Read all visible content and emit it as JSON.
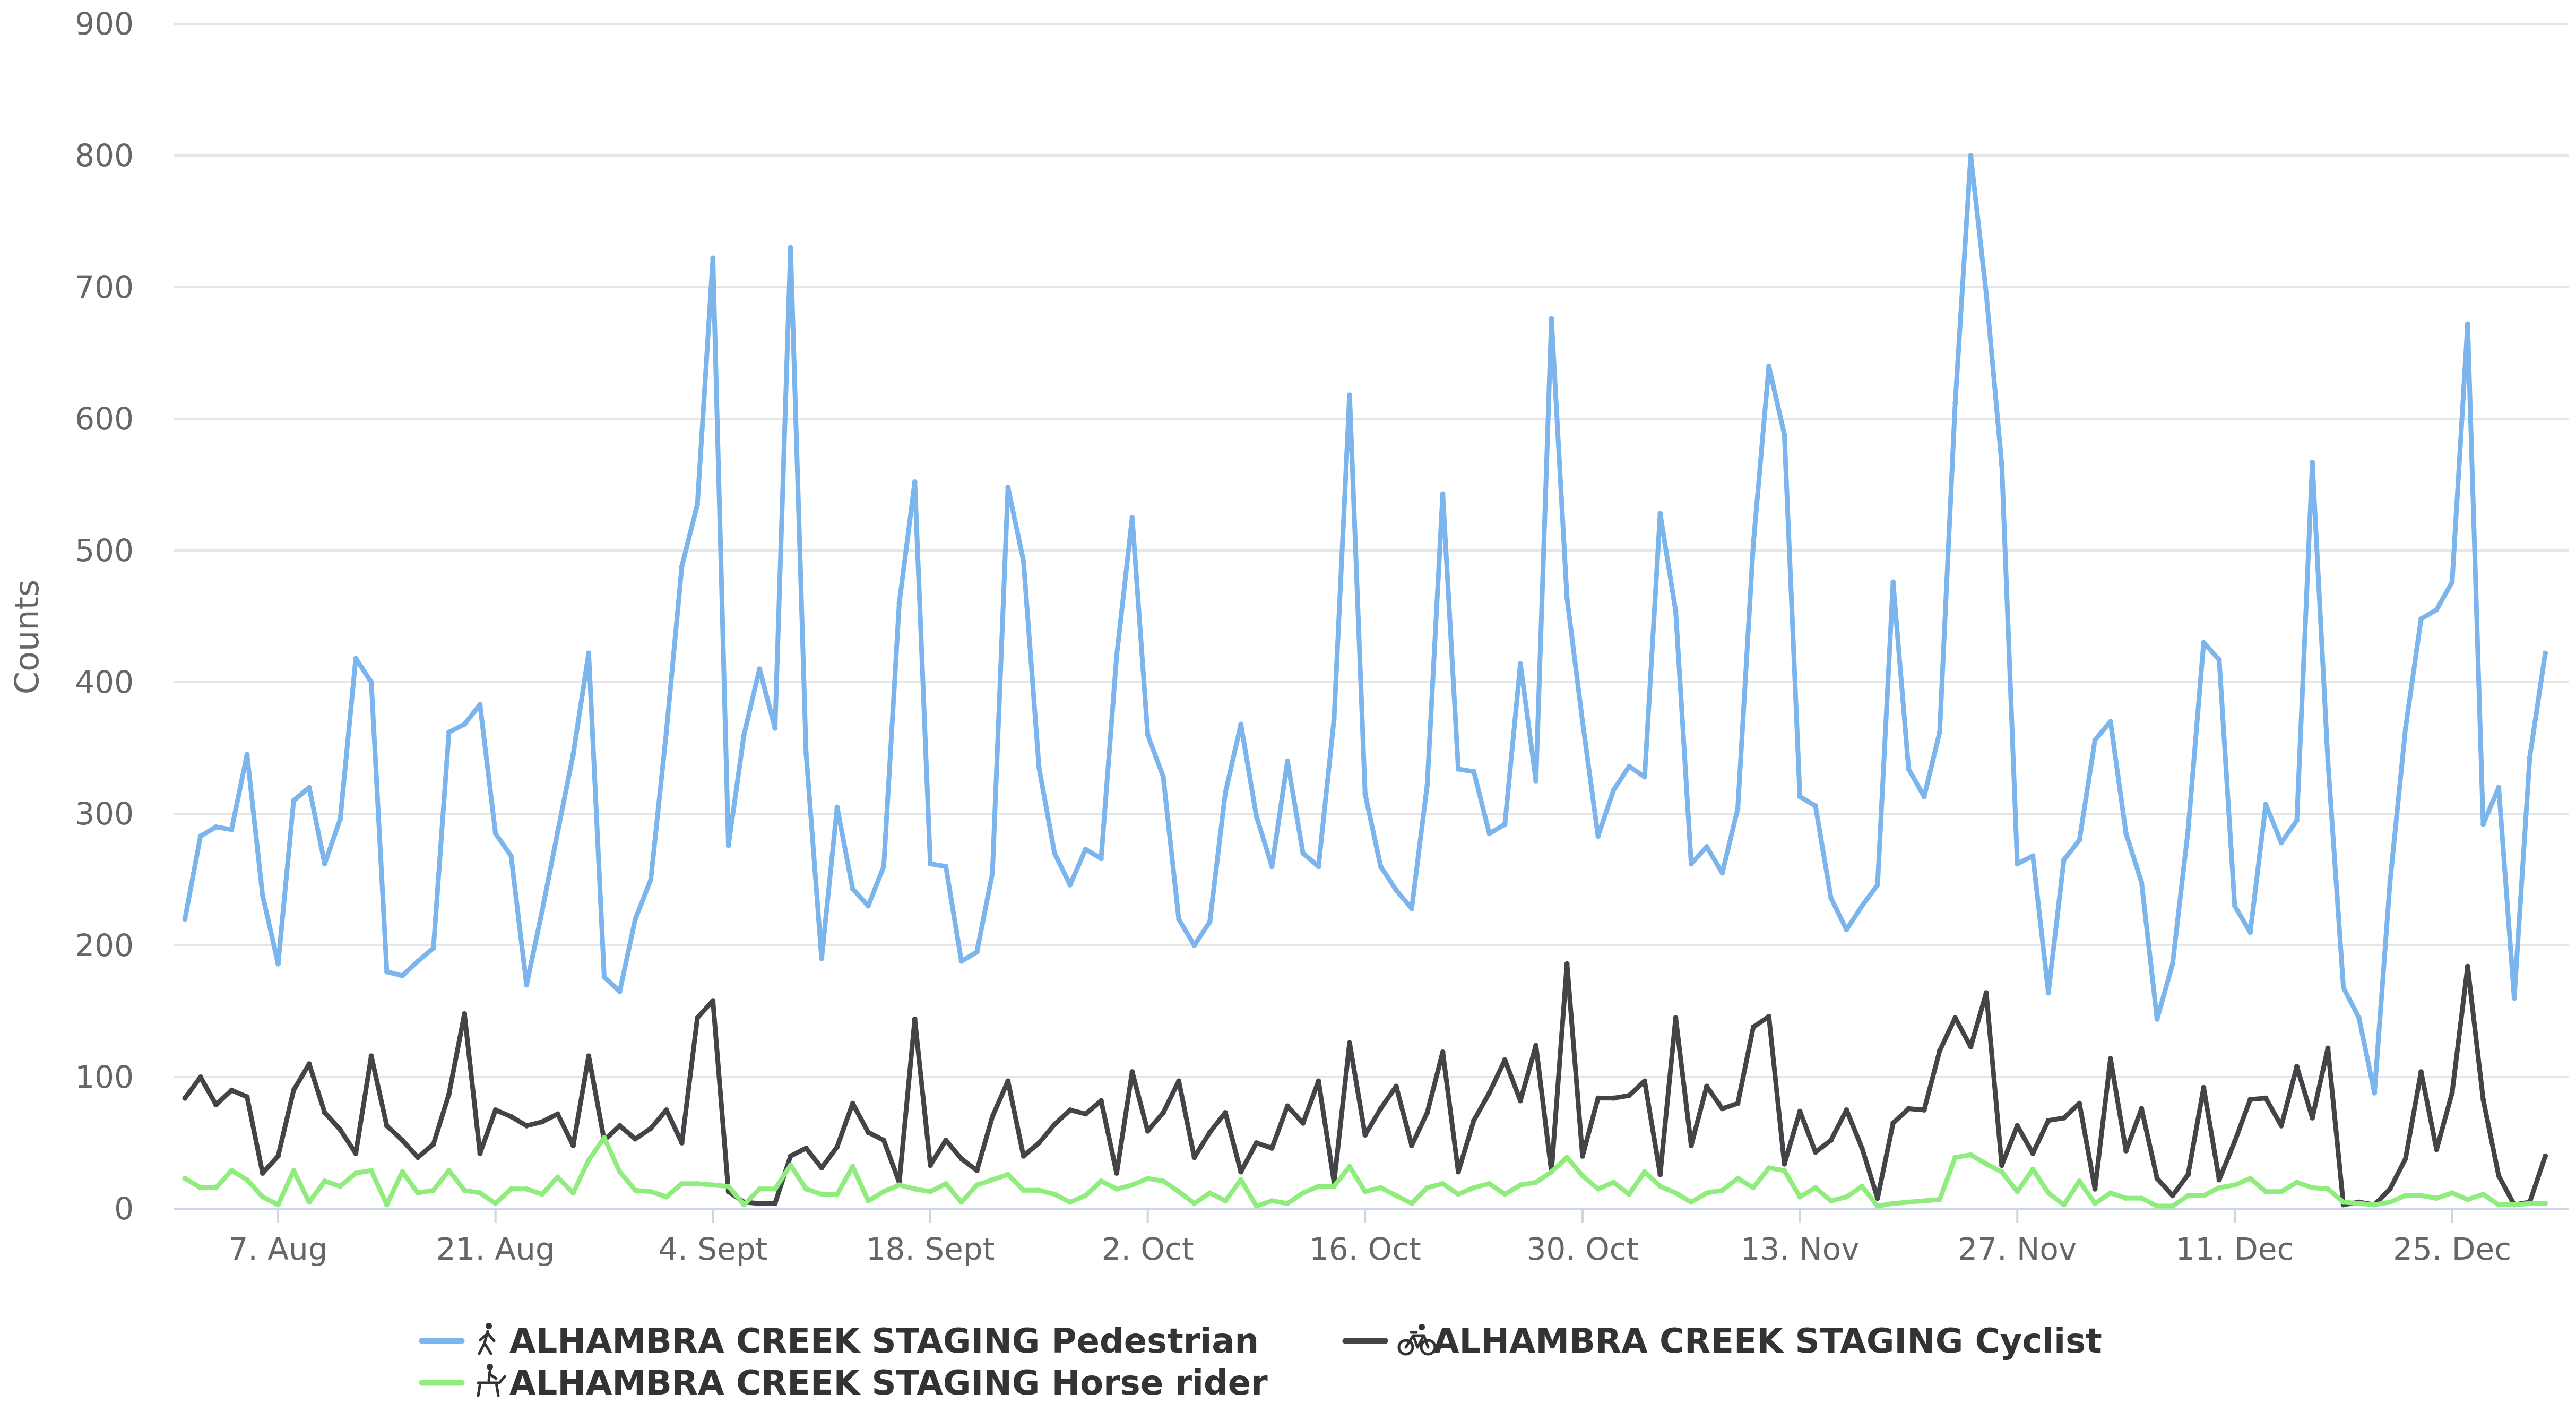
{
  "chart_data": {
    "type": "line",
    "ylabel": "Counts",
    "ylim": [
      0,
      900
    ],
    "y_ticks": [
      0,
      100,
      200,
      300,
      400,
      500,
      600,
      700,
      800,
      900
    ],
    "x_tick_labels": [
      "7. Aug",
      "21. Aug",
      "4. Sept",
      "18. Sept",
      "2. Oct",
      "16. Oct",
      "30. Oct",
      "13. Nov",
      "27. Nov",
      "11. Dec",
      "25. Dec"
    ],
    "x_tick_days": [
      6,
      20,
      34,
      48,
      62,
      76,
      90,
      104,
      118,
      132,
      146
    ],
    "x_range_days": [
      -0.7,
      153.5
    ],
    "grid": "horizontal",
    "legend_position": "bottom",
    "series": [
      {
        "name": "ALHAMBRA CREEK STAGING Pedestrian",
        "color": "#7cb5ec",
        "icon": "pedestrian-icon",
        "values": [
          220,
          283,
          290,
          288,
          345,
          238,
          186,
          310,
          320,
          262,
          296,
          418,
          400,
          180,
          177,
          188,
          198,
          362,
          368,
          383,
          285,
          268,
          170,
          226,
          286,
          345,
          422,
          176,
          165,
          220,
          250,
          362,
          488,
          535,
          722,
          276,
          360,
          410,
          365,
          730,
          346,
          190,
          305,
          243,
          230,
          260,
          460,
          552,
          262,
          260,
          188,
          195,
          255,
          548,
          492,
          335,
          270,
          246,
          273,
          266,
          420,
          525,
          360,
          328,
          220,
          200,
          218,
          316,
          368,
          298,
          260,
          340,
          270,
          260,
          372,
          618,
          315,
          260,
          242,
          228,
          322,
          543,
          334,
          332,
          285,
          292,
          414,
          325,
          676,
          464,
          370,
          283,
          318,
          336,
          328,
          528,
          454,
          262,
          275,
          255,
          304,
          505,
          640,
          588,
          313,
          306,
          236,
          212,
          230,
          246,
          476,
          334,
          313,
          362,
          612,
          800,
          695,
          565,
          262,
          268,
          164,
          265,
          280,
          356,
          370,
          285,
          248,
          144,
          186,
          288,
          430,
          417,
          230,
          210,
          307,
          278,
          295,
          567,
          340,
          168,
          145,
          88,
          248,
          365,
          448,
          455,
          476,
          672,
          292,
          320,
          160,
          343,
          422
        ]
      },
      {
        "name": "ALHAMBRA CREEK STAGING Cyclist",
        "color": "#434348",
        "icon": "bicycle-icon",
        "values": [
          84,
          100,
          79,
          90,
          85,
          27,
          40,
          90,
          110,
          73,
          60,
          42,
          116,
          63,
          52,
          39,
          49,
          87,
          148,
          42,
          75,
          70,
          63,
          66,
          72,
          48,
          116,
          52,
          63,
          53,
          61,
          75,
          50,
          145,
          158,
          13,
          5,
          4,
          4,
          40,
          46,
          31,
          47,
          80,
          58,
          52,
          20,
          144,
          33,
          52,
          38,
          29,
          70,
          97,
          40,
          50,
          64,
          75,
          72,
          82,
          27,
          104,
          59,
          73,
          97,
          39,
          58,
          73,
          28,
          50,
          46,
          78,
          65,
          97,
          20,
          126,
          56,
          76,
          93,
          48,
          73,
          119,
          28,
          67,
          88,
          113,
          82,
          124,
          28,
          186,
          40,
          84,
          84,
          86,
          97,
          26,
          145,
          48,
          93,
          76,
          80,
          138,
          146,
          34,
          74,
          43,
          52,
          75,
          46,
          8,
          65,
          76,
          75,
          120,
          145,
          123,
          164,
          33,
          63,
          42,
          67,
          69,
          80,
          15,
          114,
          44,
          76,
          23,
          10,
          26,
          92,
          22,
          51,
          83,
          84,
          63,
          108,
          69,
          122,
          3,
          5,
          3,
          15,
          38,
          104,
          45,
          88,
          184,
          83,
          25,
          3,
          5,
          40
        ]
      },
      {
        "name": "ALHAMBRA CREEK STAGING Horse rider",
        "color": "#90ed7d",
        "icon": "horse-rider-icon",
        "values": [
          23,
          16,
          16,
          29,
          22,
          9,
          3,
          29,
          5,
          21,
          17,
          27,
          29,
          3,
          28,
          12,
          14,
          29,
          14,
          12,
          4,
          15,
          15,
          11,
          24,
          12,
          37,
          54,
          28,
          14,
          13,
          9,
          19,
          19,
          18,
          17,
          3,
          15,
          15,
          33,
          15,
          11,
          11,
          32,
          6,
          13,
          18,
          15,
          13,
          19,
          5,
          18,
          22,
          26,
          14,
          14,
          11,
          5,
          10,
          21,
          15,
          18,
          23,
          21,
          13,
          4,
          12,
          6,
          22,
          2,
          6,
          4,
          12,
          17,
          17,
          32,
          13,
          16,
          10,
          4,
          16,
          19,
          11,
          16,
          19,
          11,
          18,
          20,
          28,
          39,
          25,
          15,
          20,
          11,
          28,
          17,
          12,
          5,
          12,
          14,
          23,
          16,
          31,
          29,
          9,
          16,
          6,
          9,
          17,
          2,
          4,
          5,
          6,
          7,
          39,
          41,
          34,
          28,
          13,
          30,
          12,
          3,
          21,
          4,
          12,
          8,
          8,
          2,
          2,
          10,
          10,
          16,
          18,
          23,
          13,
          13,
          20,
          16,
          15,
          5,
          4,
          3,
          5,
          10,
          10,
          8,
          12,
          7,
          11,
          3,
          3,
          4,
          4
        ]
      }
    ]
  }
}
